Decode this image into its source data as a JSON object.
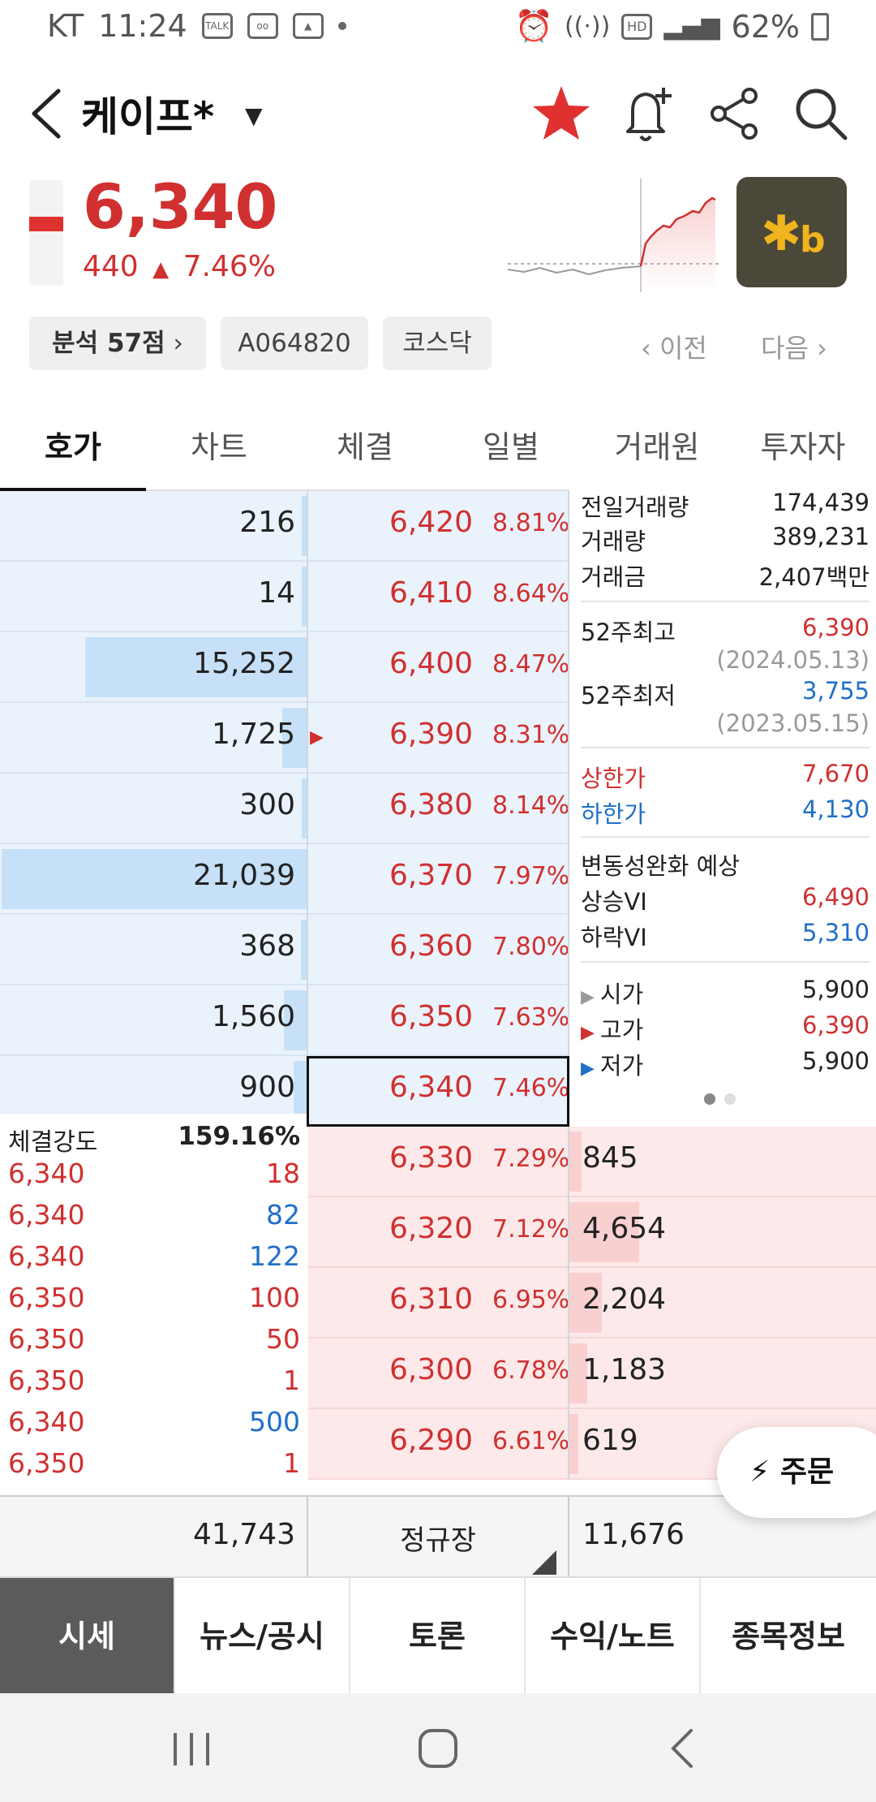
{
  "status_bar": {
    "carrier": "KT",
    "time": "11:24",
    "battery": "62%",
    "hd_label": "HD",
    "talk_label": "TALK"
  },
  "header": {
    "title": "케이프*"
  },
  "price": {
    "current": "6,340",
    "change": "440",
    "change_pct": "7.46%"
  },
  "chips": {
    "analysis_label": "분석 57점",
    "code": "A064820",
    "market": "코스닥"
  },
  "nav": {
    "prev": "이전",
    "next": "다음"
  },
  "tabs": [
    "호가",
    "차트",
    "체결",
    "일별",
    "거래원",
    "투자자"
  ],
  "asks": [
    {
      "qty": "216",
      "price": "6,420",
      "pct": "8.81%",
      "bar": 0.01
    },
    {
      "qty": "14",
      "price": "6,410",
      "pct": "8.64%",
      "bar": 0.0
    },
    {
      "qty": "15,252",
      "price": "6,400",
      "pct": "8.47%",
      "bar": 0.725
    },
    {
      "qty": "1,725",
      "price": "6,390",
      "pct": "8.31%",
      "bar": 0.08
    },
    {
      "qty": "300",
      "price": "6,380",
      "pct": "8.14%",
      "bar": 0.015
    },
    {
      "qty": "21,039",
      "price": "6,370",
      "pct": "7.97%",
      "bar": 1.0
    },
    {
      "qty": "368",
      "price": "6,360",
      "pct": "7.80%",
      "bar": 0.018
    },
    {
      "qty": "1,560",
      "price": "6,350",
      "pct": "7.63%",
      "bar": 0.074
    },
    {
      "qty": "900",
      "price": "6,340",
      "pct": "7.46%",
      "bar": 0.043
    }
  ],
  "bids": [
    {
      "qty": "845",
      "price": "6,330",
      "pct": "7.29%",
      "bar": 0.18
    },
    {
      "qty": "4,654",
      "price": "6,320",
      "pct": "7.12%",
      "bar": 1.0
    },
    {
      "qty": "2,204",
      "price": "6,310",
      "pct": "6.95%",
      "bar": 0.47
    },
    {
      "qty": "1,183",
      "price": "6,300",
      "pct": "6.78%",
      "bar": 0.25
    },
    {
      "qty": "619",
      "price": "6,290",
      "pct": "6.61%",
      "bar": 0.13
    }
  ],
  "info": {
    "prev_volume_label": "전일거래량",
    "prev_volume": "174,439",
    "volume_label": "거래량",
    "volume": "389,231",
    "amount_label": "거래금",
    "amount": "2,407백만",
    "high52_label": "52주최고",
    "high52": "6,390",
    "high52_date": "(2024.05.13)",
    "low52_label": "52주최저",
    "low52": "3,755",
    "low52_date": "(2023.05.15)",
    "upper_limit_label": "상한가",
    "upper_limit": "7,670",
    "lower_limit_label": "하한가",
    "lower_limit": "4,130",
    "vi_label": "변동성완화 예상",
    "vi_up_label": "상승VI",
    "vi_up": "6,490",
    "vi_down_label": "하락VI",
    "vi_down": "5,310",
    "open_label": "시가",
    "open": "5,900",
    "high_label": "고가",
    "high": "6,390",
    "low_label": "저가",
    "low": "5,900"
  },
  "trades": {
    "strength_label": "체결강도",
    "strength": "159.16%",
    "items": [
      {
        "price": "6,340",
        "qty": "18",
        "side": "buy"
      },
      {
        "price": "6,340",
        "qty": "82",
        "side": "sell"
      },
      {
        "price": "6,340",
        "qty": "122",
        "side": "sell"
      },
      {
        "price": "6,350",
        "qty": "100",
        "side": "buy"
      },
      {
        "price": "6,350",
        "qty": "50",
        "side": "buy"
      },
      {
        "price": "6,350",
        "qty": "1",
        "side": "buy"
      },
      {
        "price": "6,340",
        "qty": "500",
        "side": "sell"
      },
      {
        "price": "6,350",
        "qty": "1",
        "side": "buy"
      }
    ]
  },
  "totals": {
    "ask_total": "41,743",
    "session": "정규장",
    "bid_total": "11,676"
  },
  "order_button": "주문",
  "bottom_nav": [
    "시세",
    "뉴스/공시",
    "토론",
    "수익/노트",
    "종목정보"
  ],
  "colors": {
    "up": "#d03030",
    "down": "#1f6fc8",
    "logo_accent": "#f0b41e"
  }
}
